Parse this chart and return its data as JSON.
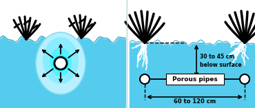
{
  "bg_color": "#55ccee",
  "white": "#ffffff",
  "black": "#000000",
  "cyan_bright": "#00eeff",
  "cyan_mid": "#88eeff",
  "cyan_pale": "#ccf7ff",
  "text_depth": "30 to 45 cm\nbelow surface",
  "text_pipes": "Porous pipes",
  "text_spacing": "60 to 120 cm",
  "fig_width": 3.7,
  "fig_height": 1.57,
  "dpi": 100
}
